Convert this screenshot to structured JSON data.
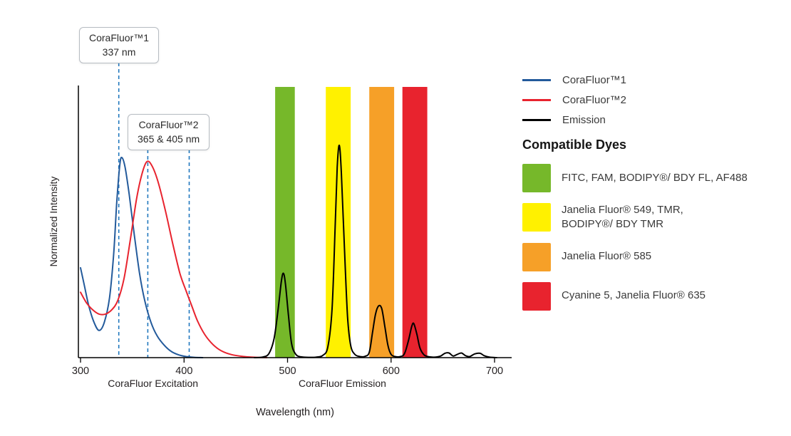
{
  "chart_data": {
    "type": "line",
    "title": "",
    "xlabel": "Wavelength (nm)",
    "ylabel": "Normalized Intensity",
    "x_ticks": [
      300,
      400,
      500,
      600,
      700
    ],
    "xlim": [
      300,
      716
    ],
    "ylim": [
      0,
      1
    ],
    "grid": false,
    "legend_position": "right",
    "annotation_line_color": "#2178BE",
    "x_section_labels": [
      {
        "text": "CoraFluor Excitation",
        "at": 370
      },
      {
        "text": "CoraFluor Emission",
        "at": 553
      }
    ],
    "peak_annotations": [
      {
        "title": "CoraFluor™1",
        "value": "337 nm",
        "lines": [
          337
        ]
      },
      {
        "title": "CoraFluor™2",
        "value": "365 & 405 nm",
        "lines": [
          365,
          405
        ]
      }
    ],
    "series": [
      {
        "name": "CoraFluor™1",
        "kind": "excitation",
        "color": "#235A9B",
        "points": [
          [
            300,
            0.33
          ],
          [
            304,
            0.26
          ],
          [
            308,
            0.19
          ],
          [
            313,
            0.13
          ],
          [
            318,
            0.1
          ],
          [
            323,
            0.13
          ],
          [
            328,
            0.22
          ],
          [
            332,
            0.38
          ],
          [
            335,
            0.57
          ],
          [
            338,
            0.71
          ],
          [
            340,
            0.735
          ],
          [
            343,
            0.7
          ],
          [
            347,
            0.6
          ],
          [
            352,
            0.45
          ],
          [
            357,
            0.31
          ],
          [
            362,
            0.21
          ],
          [
            368,
            0.13
          ],
          [
            374,
            0.08
          ],
          [
            381,
            0.045
          ],
          [
            388,
            0.022
          ],
          [
            395,
            0.01
          ],
          [
            402,
            0.004
          ],
          [
            410,
            0.001
          ],
          [
            418,
            0
          ]
        ]
      },
      {
        "name": "CoraFluor™2",
        "kind": "excitation",
        "color": "#E8232E",
        "points": [
          [
            300,
            0.24
          ],
          [
            306,
            0.2
          ],
          [
            312,
            0.175
          ],
          [
            318,
            0.16
          ],
          [
            324,
            0.16
          ],
          [
            330,
            0.175
          ],
          [
            336,
            0.21
          ],
          [
            342,
            0.29
          ],
          [
            348,
            0.43
          ],
          [
            354,
            0.58
          ],
          [
            359,
            0.67
          ],
          [
            364,
            0.72
          ],
          [
            369,
            0.705
          ],
          [
            375,
            0.645
          ],
          [
            382,
            0.54
          ],
          [
            389,
            0.42
          ],
          [
            396,
            0.31
          ],
          [
            402,
            0.245
          ],
          [
            407,
            0.195
          ],
          [
            413,
            0.135
          ],
          [
            420,
            0.085
          ],
          [
            428,
            0.048
          ],
          [
            436,
            0.025
          ],
          [
            446,
            0.011
          ],
          [
            458,
            0.004
          ],
          [
            470,
            0.001
          ],
          [
            480,
            0
          ]
        ]
      },
      {
        "name": "Emission",
        "kind": "emission",
        "color": "#000000",
        "points": [
          [
            468,
            0
          ],
          [
            476,
            0.002
          ],
          [
            482,
            0.015
          ],
          [
            487,
            0.07
          ],
          [
            491,
            0.18
          ],
          [
            494,
            0.28
          ],
          [
            496,
            0.31
          ],
          [
            498,
            0.27
          ],
          [
            501,
            0.15
          ],
          [
            504,
            0.05
          ],
          [
            508,
            0.012
          ],
          [
            513,
            0.003
          ],
          [
            520,
            0.001
          ],
          [
            528,
            0.002
          ],
          [
            534,
            0.008
          ],
          [
            539,
            0.04
          ],
          [
            543,
            0.18
          ],
          [
            546,
            0.48
          ],
          [
            548,
            0.7
          ],
          [
            550,
            0.78
          ],
          [
            552,
            0.68
          ],
          [
            555,
            0.4
          ],
          [
            558,
            0.15
          ],
          [
            561,
            0.045
          ],
          [
            565,
            0.012
          ],
          [
            570,
            0.004
          ],
          [
            575,
            0.005
          ],
          [
            579,
            0.02
          ],
          [
            582,
            0.09
          ],
          [
            585,
            0.16
          ],
          [
            588,
            0.19
          ],
          [
            591,
            0.18
          ],
          [
            594,
            0.115
          ],
          [
            597,
            0.045
          ],
          [
            600,
            0.012
          ],
          [
            604,
            0.004
          ],
          [
            609,
            0.004
          ],
          [
            613,
            0.015
          ],
          [
            617,
            0.065
          ],
          [
            620,
            0.115
          ],
          [
            622,
            0.125
          ],
          [
            625,
            0.085
          ],
          [
            628,
            0.035
          ],
          [
            632,
            0.01
          ],
          [
            637,
            0.003
          ],
          [
            643,
            0.002
          ],
          [
            648,
            0.006
          ],
          [
            652,
            0.016
          ],
          [
            656,
            0.017
          ],
          [
            660,
            0.006
          ],
          [
            664,
            0.012
          ],
          [
            668,
            0.017
          ],
          [
            672,
            0.007
          ],
          [
            676,
            0.004
          ],
          [
            681,
            0.014
          ],
          [
            686,
            0.016
          ],
          [
            690,
            0.007
          ],
          [
            695,
            0.002
          ],
          [
            702,
            0
          ]
        ]
      }
    ],
    "dye_bands": [
      {
        "key": "green",
        "label": "FITC, FAM, BODIPY®/ BDY FL, AF488",
        "color": "#76B82A",
        "wavelength_range": [
          488,
          507
        ]
      },
      {
        "key": "yellow",
        "label": "Janelia Fluor® 549, TMR,\nBODIPY®/ BDY TMR",
        "color": "#FFF100",
        "wavelength_range": [
          537,
          561
        ]
      },
      {
        "key": "orange",
        "label": "Janelia Fluor® 585",
        "color": "#F6A028",
        "wavelength_range": [
          579,
          603
        ]
      },
      {
        "key": "red",
        "label": "Cyanine 5, Janelia Fluor® 635",
        "color": "#E8232E",
        "wavelength_range": [
          611,
          635
        ]
      }
    ]
  },
  "legend": {
    "dyes_heading": "Compatible Dyes"
  }
}
